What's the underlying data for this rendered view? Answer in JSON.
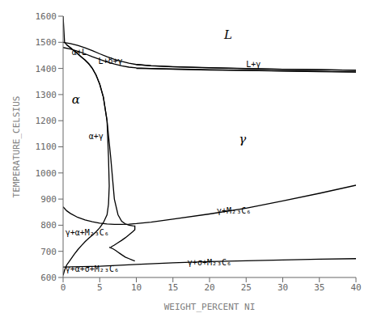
{
  "chart_data": {
    "type": "line",
    "xlabel": "WEIGHT_PERCENT NI",
    "ylabel": "TEMPERATURE_CELSIUS",
    "xlim": [
      0,
      40
    ],
    "ylim": [
      600,
      1600
    ],
    "xticks": [
      0,
      5,
      10,
      15,
      20,
      25,
      30,
      35,
      40
    ],
    "yticks": [
      600,
      700,
      800,
      900,
      1000,
      1100,
      1200,
      1300,
      1400,
      1500,
      1600
    ],
    "grid": false,
    "series": [
      {
        "color": "#000000",
        "x": [
          0,
          1,
          2,
          3,
          4,
          5,
          6,
          7,
          8,
          9,
          10,
          12,
          15,
          20,
          25,
          30,
          35,
          40
        ],
        "values": [
          1500,
          1495,
          1488,
          1479,
          1468,
          1456,
          1445,
          1435,
          1427,
          1420,
          1415,
          1410,
          1406,
          1402,
          1399,
          1397,
          1395,
          1393
        ]
      },
      {
        "color": "#000000",
        "x": [
          0,
          1,
          2,
          3,
          4,
          5,
          6,
          7,
          8,
          9,
          10,
          12,
          15,
          20,
          25,
          30,
          35,
          40
        ],
        "values": [
          1480,
          1474,
          1466,
          1456,
          1445,
          1435,
          1425,
          1417,
          1410,
          1405,
          1402,
          1400,
          1398,
          1395,
          1393,
          1391,
          1389,
          1387
        ]
      },
      {
        "color": "#000000",
        "x": [
          10,
          12,
          15,
          20,
          25,
          30,
          35,
          40
        ],
        "values": [
          1415,
          1411,
          1407,
          1403,
          1400,
          1397,
          1395,
          1393
        ]
      },
      {
        "color": "#000000",
        "x": [
          10,
          12,
          15,
          20,
          25,
          30,
          35,
          40
        ],
        "values": [
          1400,
          1399,
          1397,
          1394,
          1392,
          1390,
          1388,
          1386
        ]
      },
      {
        "color": "#000000",
        "x": [
          0,
          0.2,
          0.5,
          1.0,
          1.5,
          2.0,
          2.5,
          3.0,
          3.5,
          4.0,
          4.5,
          5.0,
          5.5,
          6.0,
          6.2,
          6.3,
          6.2,
          6.0,
          5.5,
          5.0,
          4.5,
          4.0,
          3.5,
          3.0,
          2.5,
          2.0,
          1.5,
          1.0,
          0.5,
          0.2,
          0.0
        ],
        "values": [
          1600,
          1500,
          1490,
          1479,
          1468,
          1456,
          1444,
          1432,
          1418,
          1400,
          1375,
          1340,
          1290,
          1200,
          1060,
          950,
          880,
          840,
          810,
          790,
          775,
          762,
          750,
          737,
          722,
          706,
          688,
          668,
          648,
          628,
          608
        ]
      },
      {
        "color": "#000000",
        "x": [
          0.5,
          1.0,
          1.5,
          2.0,
          2.5,
          3.0,
          3.5,
          4.0,
          4.5,
          5.0,
          5.5,
          6.0,
          6.5,
          7.0,
          7.5,
          8.0,
          8.5,
          9.0,
          9.5,
          9.8,
          9.8,
          9.5,
          9.0,
          8.5,
          8.0,
          7.5,
          7.0,
          6.5
        ],
        "values": [
          1490,
          1479,
          1468,
          1456,
          1444,
          1432,
          1418,
          1400,
          1375,
          1340,
          1290,
          1200,
          1060,
          900,
          840,
          815,
          805,
          800,
          798,
          797,
          783,
          775,
          763,
          752,
          742,
          733,
          724,
          716
        ]
      },
      {
        "color": "#000000",
        "x": [
          0,
          0.5,
          1,
          2,
          3,
          4,
          5,
          6,
          7,
          8,
          9,
          10,
          12,
          15,
          20,
          25,
          30,
          35,
          40
        ],
        "values": [
          870,
          855,
          845,
          830,
          820,
          813,
          808,
          805,
          803,
          803,
          804,
          806,
          812,
          823,
          843,
          865,
          893,
          922,
          953
        ]
      },
      {
        "color": "#000000",
        "x": [
          0,
          5,
          10,
          15,
          20,
          25,
          30,
          35,
          40
        ],
        "values": [
          640,
          643,
          650,
          656,
          661,
          664,
          667,
          670,
          672
        ]
      },
      {
        "color": "#000000",
        "x": [
          6.3,
          6.8,
          7.2,
          7.5,
          7.8,
          8.0,
          8.5,
          9.0,
          9.5,
          9.8
        ],
        "values": [
          716,
          710,
          703,
          697,
          691,
          687,
          678,
          672,
          666,
          663
        ]
      }
    ],
    "annotations": [
      {
        "text": "L",
        "x": 22,
        "y": 1530
      },
      {
        "text": "α+L",
        "x": 1.2,
        "y": 1462
      },
      {
        "text": "L+δ+γ",
        "x": 4.8,
        "y": 1428
      },
      {
        "text": "L+γ",
        "x": 25,
        "y": 1416
      },
      {
        "text": "α",
        "x": 1.2,
        "y": 1280
      },
      {
        "text": "α+γ",
        "x": 3.5,
        "y": 1140
      },
      {
        "text": "γ",
        "x": 24,
        "y": 1130
      },
      {
        "text": "γ+M₂₃C₆",
        "x": 21,
        "y": 855
      },
      {
        "text": "γ+α+M₂₃C₆",
        "x": 0.3,
        "y": 773
      },
      {
        "text": "γ+α+σ+M₂₃C₆",
        "x": 0.3,
        "y": 633
      },
      {
        "text": "γ+σ+M₂₃C₆",
        "x": 17,
        "y": 658
      }
    ]
  }
}
